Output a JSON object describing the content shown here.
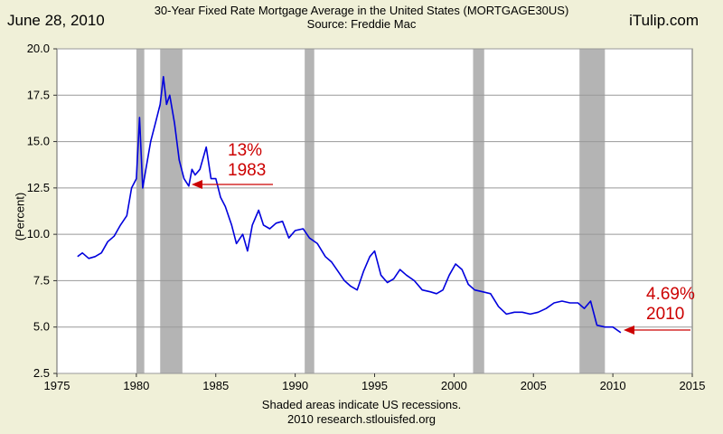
{
  "header": {
    "date": "June 28, 2010",
    "site": "iTulip.com",
    "title": "30-Year Fixed Rate Mortgage Average in the United States (MORTGAGE30US)",
    "source": "Source: Freddie Mac"
  },
  "footer": {
    "note": "Shaded areas indicate US recessions.",
    "credit": "2010 research.stlouisfed.org"
  },
  "annotations": {
    "peak_value": "13%",
    "peak_year": "1983",
    "recent_value": "4.69%",
    "recent_year": "2010"
  },
  "colors": {
    "line": "#0000dd",
    "recession": "#b4b4b4",
    "arrow": "#cc0000",
    "plot_bg": "#ffffff",
    "page_bg": "#f0f0d8"
  },
  "chart_data": {
    "type": "line",
    "ylabel": "(Percent)",
    "xlabel": "",
    "xlim": [
      1975,
      2015
    ],
    "ylim": [
      2.5,
      20.0
    ],
    "xticks": [
      "1975",
      "1980",
      "1985",
      "1990",
      "1995",
      "2000",
      "2005",
      "2010",
      "2015"
    ],
    "yticks": [
      "2.5",
      "5.0",
      "7.5",
      "10.0",
      "12.5",
      "15.0",
      "17.5",
      "20.0"
    ],
    "grid": true,
    "recessions": [
      [
        1980.0,
        1980.5
      ],
      [
        1981.5,
        1982.9
      ],
      [
        1990.6,
        1991.2
      ],
      [
        2001.2,
        2001.9
      ],
      [
        2007.9,
        2009.5
      ]
    ],
    "series": [
      {
        "x": [
          1976.3,
          1976.6,
          1977.0,
          1977.4,
          1977.8,
          1978.2,
          1978.6,
          1979.0,
          1979.4,
          1979.7,
          1980.0,
          1980.2,
          1980.4,
          1980.6,
          1980.9,
          1981.2,
          1981.5,
          1981.7,
          1981.9,
          1982.1,
          1982.4,
          1982.7,
          1983.0,
          1983.3,
          1983.5,
          1983.7,
          1984.0,
          1984.4,
          1984.7,
          1985.0,
          1985.3,
          1985.6,
          1986.0,
          1986.3,
          1986.7,
          1987.0,
          1987.3,
          1987.7,
          1988.0,
          1988.4,
          1988.8,
          1989.2,
          1989.6,
          1990.0,
          1990.5,
          1990.9,
          1991.4,
          1991.9,
          1992.3,
          1992.7,
          1993.1,
          1993.5,
          1993.9,
          1994.3,
          1994.7,
          1995.0,
          1995.4,
          1995.8,
          1996.2,
          1996.6,
          1997.0,
          1997.5,
          1998.0,
          1998.5,
          1998.9,
          1999.3,
          1999.7,
          2000.1,
          2000.5,
          2000.9,
          2001.3,
          2001.8,
          2002.3,
          2002.8,
          2003.3,
          2003.8,
          2004.3,
          2004.8,
          2005.3,
          2005.8,
          2006.3,
          2006.8,
          2007.3,
          2007.8,
          2008.2,
          2008.6,
          2009.0,
          2009.5,
          2010.0,
          2010.5
        ],
        "values": [
          8.8,
          9.0,
          8.7,
          8.8,
          9.0,
          9.6,
          9.9,
          10.5,
          11.0,
          12.5,
          13.0,
          16.3,
          12.5,
          13.5,
          15.0,
          16.0,
          17.0,
          18.5,
          17.0,
          17.5,
          16.0,
          14.0,
          13.0,
          12.6,
          13.5,
          13.2,
          13.5,
          14.7,
          13.0,
          13.0,
          12.0,
          11.5,
          10.5,
          9.5,
          10.0,
          9.1,
          10.5,
          11.3,
          10.5,
          10.3,
          10.6,
          10.7,
          9.8,
          10.2,
          10.3,
          9.8,
          9.5,
          8.8,
          8.5,
          8.0,
          7.5,
          7.2,
          7.0,
          8.0,
          8.8,
          9.1,
          7.8,
          7.4,
          7.6,
          8.1,
          7.8,
          7.5,
          7.0,
          6.9,
          6.8,
          7.0,
          7.8,
          8.4,
          8.1,
          7.3,
          7.0,
          6.9,
          6.8,
          6.1,
          5.7,
          5.8,
          5.8,
          5.7,
          5.8,
          6.0,
          6.3,
          6.4,
          6.3,
          6.3,
          6.0,
          6.4,
          5.1,
          5.0,
          5.0,
          4.7
        ]
      }
    ]
  }
}
